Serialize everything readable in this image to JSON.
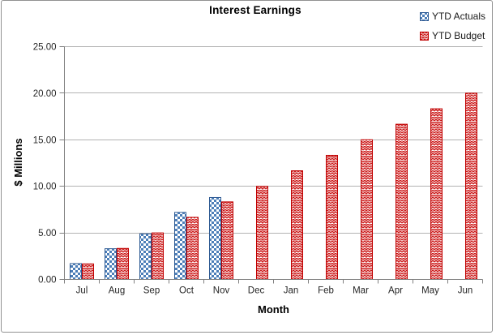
{
  "chart_data": {
    "type": "bar",
    "title": "Interest Earnings",
    "xlabel": "Month",
    "ylabel": "$ Millions",
    "categories": [
      "Jul",
      "Aug",
      "Sep",
      "Oct",
      "Nov",
      "Dec",
      "Jan",
      "Feb",
      "Mar",
      "Apr",
      "May",
      "Jun"
    ],
    "series": [
      {
        "name": "YTD Actuals",
        "pattern": "checker",
        "color": "#4C7EB8",
        "border": "#2F5B94",
        "values": [
          1.7,
          3.3,
          4.9,
          7.2,
          8.8,
          null,
          null,
          null,
          null,
          null,
          null,
          null
        ]
      },
      {
        "name": "YTD Budget",
        "pattern": "weave",
        "color": "#CC1A1A",
        "border": "#C00000",
        "values": [
          1.67,
          3.33,
          5.0,
          6.67,
          8.33,
          10.0,
          11.67,
          13.33,
          15.0,
          16.67,
          18.33,
          20.0
        ]
      }
    ],
    "ylim": [
      0,
      25
    ],
    "ytick_step": 5,
    "ytick_labels": [
      "0.00",
      "5.00",
      "10.00",
      "15.00",
      "20.00",
      "25.00"
    ],
    "grid": true,
    "legend_position": "top-right",
    "axis_color": "#808080",
    "grid_color": "#B3B3B3"
  }
}
